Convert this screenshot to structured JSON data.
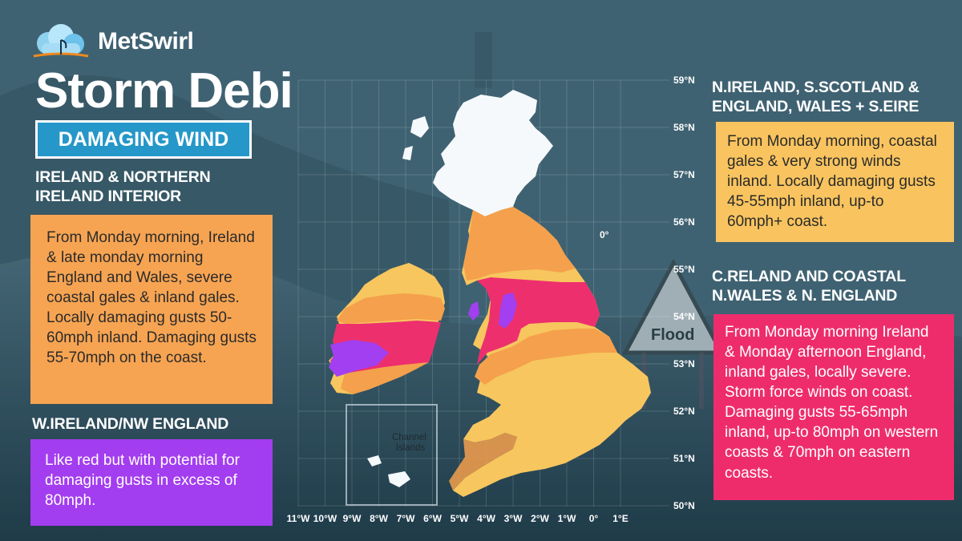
{
  "brand": {
    "name": "MetSwirl"
  },
  "title": "Storm Debi",
  "badge": "DAMAGING WIND",
  "panels": {
    "ireland_interior": {
      "heading": "IRELAND & NORTHERN IRELAND INTERIOR",
      "text": "From Monday morning, Ireland & late monday morning England and Wales, severe coastal gales & inland gales.  Locally damaging gusts 50-60mph inland.  Damaging gusts 55-70mph on the coast.",
      "color": "#f7a452"
    },
    "west_ireland": {
      "heading": "W.IRELAND/NW ENGLAND",
      "text": "Like red but with potential for damaging gusts in excess of 80mph.",
      "color": "#a33df0"
    },
    "north": {
      "heading": "N.IRELAND, S.SCOTLAND & ENGLAND, WALES + S.EIRE",
      "text": "From Monday morning, coastal gales & very strong winds inland.  Locally damaging gusts 45-55mph inland, up-to 60mph+ coast.",
      "color": "#f9c45f"
    },
    "central": {
      "heading": "C.RELAND AND COASTAL N.WALES & N. ENGLAND",
      "text": "From Monday morning Ireland & Monday afternoon England, inland gales, locally severe.  Storm force winds on coast.  Damaging gusts 55-65mph inland, up-to 80mph on western coasts & 70mph on eastern coasts.",
      "color": "#ee2c6c"
    }
  },
  "map": {
    "lat_labels": [
      "59°N",
      "58°N",
      "57°N",
      "56°N",
      "55°N",
      "54°N",
      "53°N",
      "52°N",
      "51°N",
      "50°N"
    ],
    "lon_labels": [
      "11°W",
      "10°W",
      "9°W",
      "8°W",
      "7°W",
      "6°W",
      "5°W",
      "4°W",
      "3°W",
      "2°W",
      "1°W",
      "0°",
      "1°E"
    ],
    "meridian_label": "0°",
    "inset_label": "Channel Islands",
    "sign_label": "Flood",
    "colors": {
      "scotland": "#f6f9fc",
      "land": "#f7c65e",
      "orange": "#f5a04c",
      "red": "#ee2f6e",
      "purple": "#a23ff0"
    }
  }
}
